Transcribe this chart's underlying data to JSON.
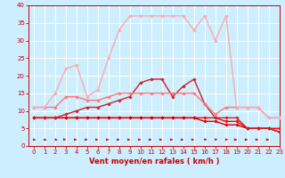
{
  "x": [
    0,
    1,
    2,
    3,
    4,
    5,
    6,
    7,
    8,
    9,
    10,
    11,
    12,
    13,
    14,
    15,
    16,
    17,
    18,
    19,
    20,
    21,
    22,
    23
  ],
  "series": [
    {
      "color": "#ff0000",
      "linewidth": 1.0,
      "marker": "D",
      "markersize": 1.8,
      "y": [
        8,
        8,
        8,
        8,
        8,
        8,
        8,
        8,
        8,
        8,
        8,
        8,
        8,
        8,
        8,
        8,
        8,
        8,
        7,
        7,
        5,
        5,
        5,
        5
      ]
    },
    {
      "color": "#dd0000",
      "linewidth": 1.0,
      "marker": "D",
      "markersize": 1.8,
      "y": [
        8,
        8,
        8,
        8,
        8,
        8,
        8,
        8,
        8,
        8,
        8,
        8,
        8,
        8,
        8,
        8,
        7,
        7,
        6,
        6,
        5,
        5,
        5,
        4
      ]
    },
    {
      "color": "#cc2222",
      "linewidth": 1.0,
      "marker": "D",
      "markersize": 1.8,
      "y": [
        8,
        8,
        8,
        9,
        10,
        11,
        11,
        12,
        13,
        14,
        18,
        19,
        19,
        14,
        17,
        19,
        12,
        8,
        8,
        8,
        5,
        5,
        5,
        4
      ]
    },
    {
      "color": "#ff7777",
      "linewidth": 1.0,
      "marker": "D",
      "markersize": 1.8,
      "y": [
        11,
        11,
        11,
        14,
        14,
        13,
        13,
        14,
        15,
        15,
        15,
        15,
        15,
        15,
        15,
        15,
        12,
        9,
        11,
        11,
        11,
        11,
        8,
        8
      ]
    },
    {
      "color": "#ffaaaa",
      "linewidth": 1.0,
      "marker": "D",
      "markersize": 1.8,
      "y": [
        11,
        11,
        15,
        22,
        23,
        14,
        16,
        25,
        33,
        37,
        37,
        37,
        37,
        37,
        37,
        33,
        37,
        30,
        37,
        11,
        11,
        11,
        8,
        8
      ]
    }
  ],
  "arrow_directions": [
    45,
    55,
    65,
    75,
    88,
    90,
    88,
    90,
    90,
    95,
    90,
    90,
    95,
    90,
    95,
    100,
    115,
    125,
    130,
    90,
    90,
    90,
    90,
    110
  ],
  "xlabel": "Vent moyen/en rafales ( km/h )",
  "xlim": [
    -0.5,
    23
  ],
  "ylim": [
    0,
    40
  ],
  "yticks": [
    0,
    5,
    10,
    15,
    20,
    25,
    30,
    35,
    40
  ],
  "xticks": [
    0,
    1,
    2,
    3,
    4,
    5,
    6,
    7,
    8,
    9,
    10,
    11,
    12,
    13,
    14,
    15,
    16,
    17,
    18,
    19,
    20,
    21,
    22,
    23
  ],
  "background_color": "#cceeff",
  "grid_color": "#ffffff",
  "axis_color": "#cc0000",
  "text_color": "#cc0000",
  "label_fontsize": 6,
  "tick_fontsize": 5
}
